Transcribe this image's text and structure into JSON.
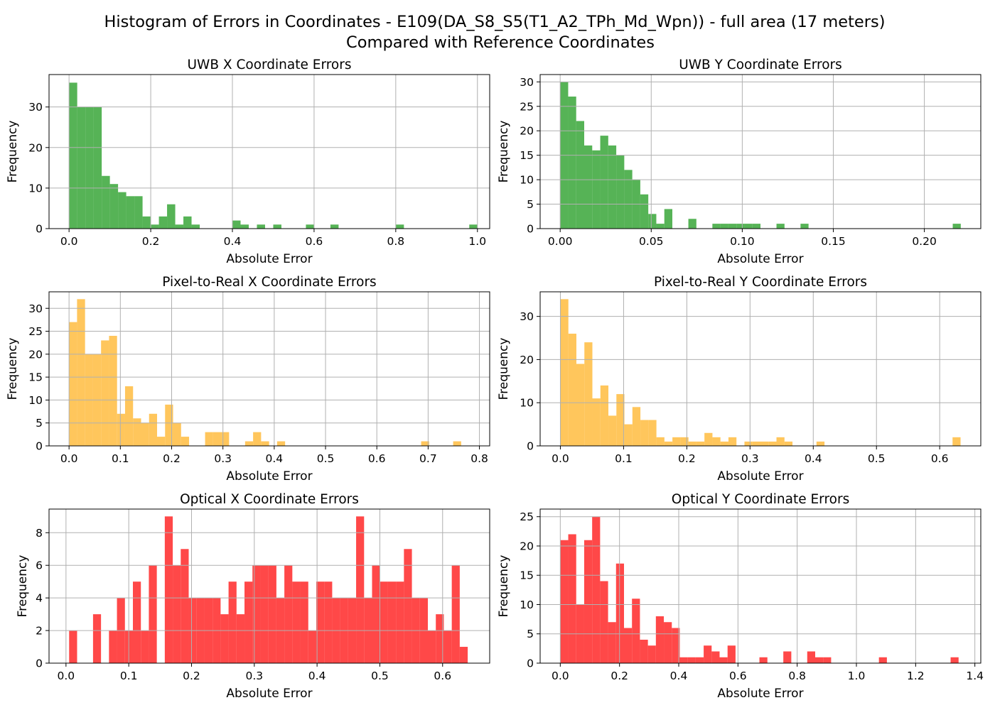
{
  "figure": {
    "title_line1": "Histogram of Errors in Coordinates - E109(DA_S8_S5(T1_A2_TPh_Md_Wpn)) - full area (17 meters)",
    "title_line2": "Compared with Reference Coordinates"
  },
  "chart_data": [
    {
      "type": "bar",
      "title": "UWB X Coordinate Errors",
      "xlabel": "Absolute Error",
      "ylabel": "Frequency",
      "color": "#2ca02c",
      "grid": true,
      "bin_start": 0.0,
      "bin_width": 0.02,
      "counts": [
        36,
        30,
        30,
        30,
        13,
        11,
        9,
        8,
        8,
        3,
        1,
        3,
        6,
        1,
        3,
        1,
        0,
        0,
        0,
        0,
        2,
        1,
        0,
        1,
        0,
        1,
        0,
        0,
        0,
        1,
        0,
        0,
        1,
        0,
        0,
        0,
        0,
        0,
        0,
        0,
        1,
        0,
        0,
        0,
        0,
        0,
        0,
        0,
        0,
        1
      ],
      "xlim": [
        -0.049,
        1.03
      ],
      "ylim": [
        0,
        38
      ],
      "xticks": [
        0.0,
        0.2,
        0.4,
        0.6,
        0.8,
        1.0
      ],
      "xtick_labels": [
        "0.0",
        "0.2",
        "0.4",
        "0.6",
        "0.8",
        "1.0"
      ],
      "yticks": [
        0,
        10,
        20,
        30
      ],
      "ytick_labels": [
        "0",
        "10",
        "20",
        "30"
      ]
    },
    {
      "type": "bar",
      "title": "UWB Y Coordinate Errors",
      "xlabel": "Absolute Error",
      "ylabel": "Frequency",
      "color": "#2ca02c",
      "grid": true,
      "bin_start": 0.0,
      "bin_width": 0.0044,
      "counts": [
        30,
        27,
        22,
        17,
        16,
        19,
        17,
        15,
        12,
        10,
        7,
        3,
        1,
        4,
        0,
        0,
        2,
        0,
        0,
        1,
        1,
        1,
        1,
        1,
        1,
        0,
        0,
        1,
        0,
        0,
        1,
        0,
        0,
        0,
        0,
        0,
        0,
        0,
        0,
        0,
        0,
        0,
        0,
        0,
        0,
        0,
        0,
        0,
        0,
        1
      ],
      "xlim": [
        -0.011,
        0.231
      ],
      "ylim": [
        0,
        31.5
      ],
      "xticks": [
        0.0,
        0.05,
        0.1,
        0.15,
        0.2
      ],
      "xtick_labels": [
        "0.00",
        "0.05",
        "0.10",
        "0.15",
        "0.20"
      ],
      "yticks": [
        0,
        5,
        10,
        15,
        20,
        25,
        30
      ],
      "ytick_labels": [
        "0",
        "5",
        "10",
        "15",
        "20",
        "25",
        "30"
      ]
    },
    {
      "type": "bar",
      "title": "Pixel-to-Real X Coordinate Errors",
      "xlabel": "Absolute Error",
      "ylabel": "Frequency",
      "color": "#ffb833",
      "grid": true,
      "bin_start": 0.0,
      "bin_width": 0.0156,
      "counts": [
        27,
        32,
        20,
        20,
        23,
        24,
        7,
        13,
        6,
        5,
        7,
        2,
        9,
        5,
        2,
        0,
        0,
        3,
        3,
        3,
        0,
        0,
        1,
        3,
        1,
        0,
        1,
        0,
        0,
        0,
        0,
        0,
        0,
        0,
        0,
        0,
        0,
        0,
        0,
        0,
        0,
        0,
        0,
        0,
        1,
        0,
        0,
        0,
        1,
        0
      ],
      "xlim": [
        -0.039,
        0.82
      ],
      "ylim": [
        0,
        33.6
      ],
      "xticks": [
        0.0,
        0.1,
        0.2,
        0.3,
        0.4,
        0.5,
        0.6,
        0.7,
        0.8
      ],
      "xtick_labels": [
        "0.0",
        "0.1",
        "0.2",
        "0.3",
        "0.4",
        "0.5",
        "0.6",
        "0.7",
        "0.8"
      ],
      "yticks": [
        0,
        5,
        10,
        15,
        20,
        25,
        30
      ],
      "ytick_labels": [
        "0",
        "5",
        "10",
        "15",
        "20",
        "25",
        "30"
      ]
    },
    {
      "type": "bar",
      "title": "Pixel-to-Real Y Coordinate Errors",
      "xlabel": "Absolute Error",
      "ylabel": "Frequency",
      "color": "#ffb833",
      "grid": true,
      "bin_start": 0.0,
      "bin_width": 0.01266,
      "counts": [
        34,
        26,
        19,
        24,
        11,
        14,
        7,
        12,
        5,
        9,
        6,
        6,
        2,
        1,
        2,
        2,
        1,
        1,
        3,
        2,
        1,
        2,
        0,
        1,
        1,
        1,
        1,
        2,
        1,
        0,
        0,
        0,
        1,
        0,
        0,
        0,
        0,
        0,
        0,
        0,
        0,
        0,
        0,
        0,
        0,
        0,
        0,
        0,
        0,
        2
      ],
      "xlim": [
        -0.032,
        0.665
      ],
      "ylim": [
        0,
        35.7
      ],
      "xticks": [
        0.0,
        0.1,
        0.2,
        0.3,
        0.4,
        0.5,
        0.6
      ],
      "xtick_labels": [
        "0.0",
        "0.1",
        "0.2",
        "0.3",
        "0.4",
        "0.5",
        "0.6"
      ],
      "yticks": [
        0,
        10,
        20,
        30
      ],
      "ytick_labels": [
        "0",
        "10",
        "20",
        "30"
      ]
    },
    {
      "type": "bar",
      "title": "Optical X Coordinate Errors",
      "xlabel": "Absolute Error",
      "ylabel": "Frequency",
      "color": "#ff1a1a",
      "grid": true,
      "bin_start": 0.005,
      "bin_width": 0.0127,
      "counts": [
        2,
        0,
        0,
        3,
        0,
        2,
        4,
        2,
        5,
        2,
        6,
        0,
        9,
        6,
        7,
        4,
        4,
        4,
        4,
        3,
        5,
        3,
        5,
        6,
        6,
        6,
        4,
        6,
        5,
        5,
        2,
        5,
        5,
        4,
        4,
        4,
        9,
        4,
        6,
        5,
        5,
        5,
        7,
        4,
        4,
        2,
        3,
        2,
        6,
        1
      ],
      "xlim": [
        -0.027,
        0.675
      ],
      "ylim": [
        0,
        9.45
      ],
      "xticks": [
        0.0,
        0.1,
        0.2,
        0.3,
        0.4,
        0.5,
        0.6
      ],
      "xtick_labels": [
        "0.0",
        "0.1",
        "0.2",
        "0.3",
        "0.4",
        "0.5",
        "0.6"
      ],
      "yticks": [
        0,
        2,
        4,
        6,
        8
      ],
      "ytick_labels": [
        "0",
        "2",
        "4",
        "6",
        "8"
      ]
    },
    {
      "type": "bar",
      "title": "Optical Y Coordinate Errors",
      "xlabel": "Absolute Error",
      "ylabel": "Frequency",
      "color": "#ff1a1a",
      "grid": true,
      "bin_start": 0.0,
      "bin_width": 0.0269,
      "counts": [
        21,
        22,
        10,
        21,
        25,
        14,
        7,
        17,
        6,
        11,
        4,
        3,
        8,
        7,
        6,
        1,
        1,
        1,
        3,
        2,
        1,
        3,
        0,
        0,
        0,
        1,
        0,
        0,
        2,
        0,
        0,
        2,
        1,
        1,
        0,
        0,
        0,
        0,
        0,
        0,
        1,
        0,
        0,
        0,
        0,
        0,
        0,
        0,
        0,
        1
      ],
      "xlim": [
        -0.068,
        1.42
      ],
      "ylim": [
        0,
        26.3
      ],
      "xticks": [
        0.0,
        0.2,
        0.4,
        0.6,
        0.8,
        1.0,
        1.2,
        1.4
      ],
      "xtick_labels": [
        "0.0",
        "0.2",
        "0.4",
        "0.6",
        "0.8",
        "1.0",
        "1.2",
        "1.4"
      ],
      "yticks": [
        0,
        5,
        10,
        15,
        20,
        25
      ],
      "ytick_labels": [
        "0",
        "5",
        "10",
        "15",
        "20",
        "25"
      ]
    }
  ]
}
